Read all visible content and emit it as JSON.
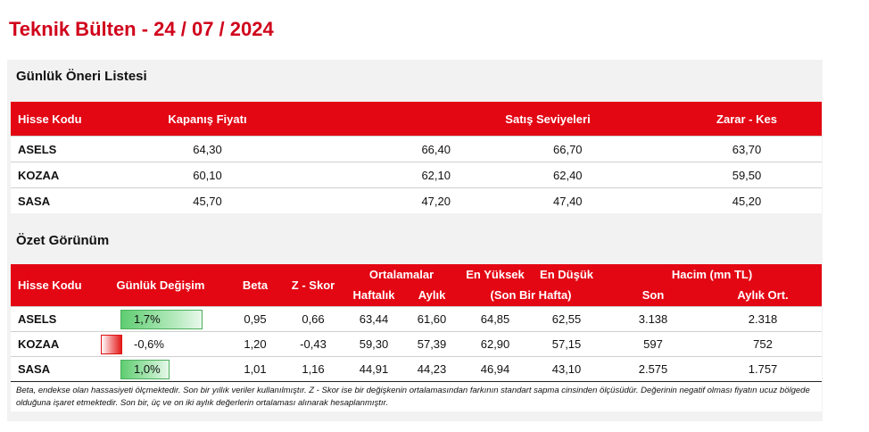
{
  "title": "Teknik Bülten - 24 / 07 / 2024",
  "daily_list": {
    "section_title": "Günlük Öneri Listesi",
    "headers": {
      "hisse_kodu": "Hisse Kodu",
      "kapanis": "Kapanış Fiyatı",
      "satis": "Satış Seviyeleri",
      "zarar": "Zarar  - Kes"
    },
    "rows": [
      {
        "code": "ASELS",
        "close": "64,30",
        "sell1": "66,40",
        "sell2": "66,70",
        "stop": "63,70"
      },
      {
        "code": "KOZAA",
        "close": "60,10",
        "sell1": "62,10",
        "sell2": "62,40",
        "stop": "59,50"
      },
      {
        "code": "SASA",
        "close": "45,70",
        "sell1": "47,20",
        "sell2": "47,40",
        "stop": "45,20"
      }
    ]
  },
  "summary": {
    "section_title": "Özet Görünüm",
    "headers": {
      "hisse_kodu": "Hisse Kodu",
      "gunluk": "Günlük Değişim",
      "beta": "Beta",
      "zskor": "Z - Skor",
      "ortalamalar": "Ortalamalar",
      "haftalik": "Haftalık",
      "aylik": "Aylık",
      "en_yuksek": "En Yüksek",
      "en_dusuk": "En Düşük",
      "son_bir_hafta": "(Son Bir Hafta)",
      "hacim": "Hacim (mn TL)",
      "son": "Son",
      "aylik_ort": "Aylık Ort."
    },
    "rows": [
      {
        "code": "ASELS",
        "change": "1,7%",
        "change_value": 1.7,
        "beta": "0,95",
        "z": "0,66",
        "weekly": "63,44",
        "monthly": "61,60",
        "high": "64,85",
        "low": "62,55",
        "vol_last": "3.138",
        "vol_avg": "2.318"
      },
      {
        "code": "KOZAA",
        "change": "-0,6%",
        "change_value": -0.6,
        "beta": "1,20",
        "z": "-0,43",
        "weekly": "59,30",
        "monthly": "57,39",
        "high": "62,90",
        "low": "57,15",
        "vol_last": "597",
        "vol_avg": "752"
      },
      {
        "code": "SASA",
        "change": "1,0%",
        "change_value": 1.0,
        "beta": "1,01",
        "z": "1,16",
        "weekly": "44,91",
        "monthly": "44,23",
        "high": "46,94",
        "low": "43,10",
        "vol_last": "2.575",
        "vol_avg": "1.757"
      }
    ],
    "note": "Beta, endekse olan hassasiyeti ölçmektedir. Son bir yıllık veriler kullanılmıştır. Z - Skor ise bir değişkenin ortalamasından farkının standart sapma cinsinden ölçüsüdür. Değerinin negatif olması fiyatın ucuz bölgede olduğuna işaret etmektedir. Son bir, üç ve on iki aylık değerlerin ortalaması alınarak hesaplanmıştır."
  },
  "colors": {
    "accent": "#e30613",
    "title": "#d0021b",
    "positive": "#5fcd71",
    "negative": "#e31b1b"
  }
}
